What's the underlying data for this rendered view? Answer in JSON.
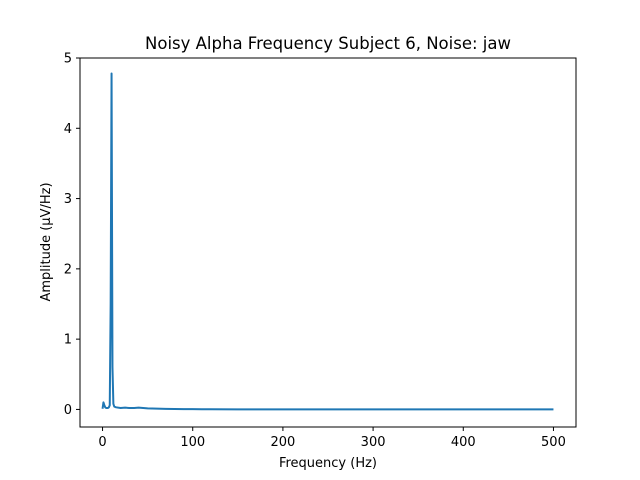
{
  "chart_data": {
    "type": "line",
    "title": "Noisy Alpha Frequency Subject 6, Noise: jaw",
    "xlabel": "Frequency (Hz)",
    "ylabel": "Amplitude (μV/Hz)",
    "xlim": [
      -25,
      525
    ],
    "ylim": [
      -0.25,
      5.0
    ],
    "xticks": [
      0,
      100,
      200,
      300,
      400,
      500
    ],
    "yticks": [
      0,
      1,
      2,
      3,
      4,
      5
    ],
    "grid": false,
    "series": [
      {
        "color": "#1f77b4",
        "x": [
          0,
          1,
          2,
          3,
          4,
          5,
          6,
          7,
          8,
          9,
          10,
          11,
          12,
          13,
          15,
          20,
          25,
          30,
          35,
          40,
          45,
          50,
          60,
          70,
          80,
          90,
          100,
          110,
          120,
          150,
          200,
          300,
          400,
          500
        ],
        "y": [
          0.01,
          0.1,
          0.06,
          0.03,
          0.02,
          0.02,
          0.02,
          0.03,
          0.06,
          1.5,
          4.78,
          0.6,
          0.08,
          0.04,
          0.03,
          0.02,
          0.025,
          0.02,
          0.02,
          0.025,
          0.02,
          0.015,
          0.012,
          0.008,
          0.006,
          0.005,
          0.004,
          0.003,
          0.002,
          0.001,
          0.001,
          0.0,
          0.0,
          0.0
        ]
      }
    ]
  }
}
